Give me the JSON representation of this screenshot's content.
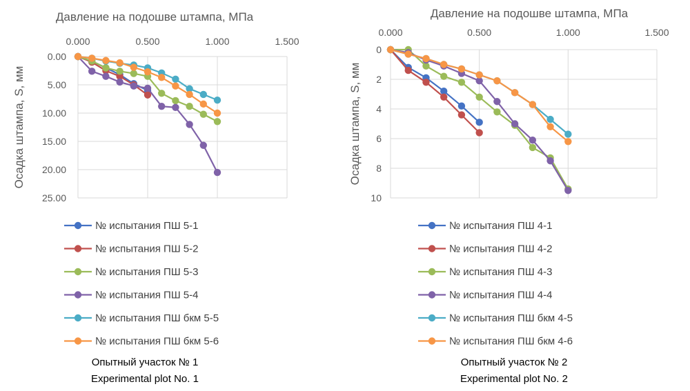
{
  "colors": [
    "#4472c4",
    "#c0504d",
    "#9bbb59",
    "#7f62a8",
    "#4bacc6",
    "#f79646"
  ],
  "chart_data": [
    {
      "type": "line",
      "title": "Давление на подошве штампа, МПа",
      "xlabel": "Давление на подошве штампа, МПа",
      "ylabel": "Осадка штампа, S, мм",
      "x_ticks": [
        "0.000",
        "0.500",
        "1.000",
        "1.500"
      ],
      "y_ticks": [
        "0.00",
        "5.00",
        "10.00",
        "15.00",
        "20.00",
        "25.00"
      ],
      "xlim": [
        0,
        1.5
      ],
      "ylim": [
        0,
        25
      ],
      "y_reversed": true,
      "x_axis_position": "top",
      "grid": true,
      "legend_position": "bottom",
      "series": [
        {
          "name": "№ испытания ПШ 5-1",
          "x": [
            0,
            0.1,
            0.2,
            0.3,
            0.4,
            0.5
          ],
          "y": [
            0,
            0.8,
            2.0,
            3.2,
            4.8,
            6.0
          ]
        },
        {
          "name": "№ испытания ПШ 5-2",
          "x": [
            0,
            0.1,
            0.2,
            0.3,
            0.4,
            0.5
          ],
          "y": [
            0,
            1.0,
            2.5,
            3.5,
            5.0,
            6.8
          ]
        },
        {
          "name": "№ испытания ПШ 5-3",
          "x": [
            0,
            0.1,
            0.2,
            0.3,
            0.4,
            0.5,
            0.6,
            0.7,
            0.8,
            0.9,
            1.0
          ],
          "y": [
            0,
            0.8,
            2.0,
            2.6,
            3.0,
            3.5,
            6.5,
            7.8,
            8.8,
            10.2,
            11.5
          ]
        },
        {
          "name": "№ испытания ПШ 5-4",
          "x": [
            0,
            0.1,
            0.2,
            0.3,
            0.4,
            0.5,
            0.6,
            0.7,
            0.8,
            0.9,
            1.0
          ],
          "y": [
            0,
            2.6,
            3.5,
            4.5,
            5.2,
            5.6,
            8.8,
            9.0,
            12.0,
            15.7,
            20.5
          ]
        },
        {
          "name": "№ испытания ПШ бкм 5-5",
          "x": [
            0,
            0.1,
            0.2,
            0.3,
            0.4,
            0.5,
            0.6,
            0.7,
            0.8,
            0.9,
            1.0
          ],
          "y": [
            0,
            0.3,
            0.8,
            1.2,
            1.5,
            2.0,
            2.9,
            4.0,
            5.7,
            6.7,
            7.7
          ]
        },
        {
          "name": "№ испытания ПШ бкм 5-6",
          "x": [
            0,
            0.1,
            0.2,
            0.3,
            0.4,
            0.5,
            0.6,
            0.7,
            0.8,
            0.9,
            1.0
          ],
          "y": [
            0,
            0.3,
            0.7,
            1.1,
            1.9,
            2.7,
            3.7,
            5.2,
            6.7,
            8.4,
            10.0
          ]
        }
      ]
    },
    {
      "type": "line",
      "title": "Давление на подошве штампа, МПа",
      "xlabel": "Давление на подошве штампа, МПа",
      "ylabel": "Осадка штампа, S, мм",
      "x_ticks": [
        "0.000",
        "0.500",
        "1.000",
        "1.500"
      ],
      "y_ticks": [
        "0",
        "2",
        "4",
        "6",
        "8",
        "10"
      ],
      "xlim": [
        0,
        1.5
      ],
      "ylim": [
        0,
        10
      ],
      "y_reversed": true,
      "x_axis_position": "top",
      "grid": true,
      "legend_position": "bottom",
      "series": [
        {
          "name": "№ испытания ПШ 4-1",
          "x": [
            0,
            0.1,
            0.2,
            0.3,
            0.4,
            0.5
          ],
          "y": [
            0,
            1.2,
            1.9,
            2.8,
            3.8,
            4.9
          ]
        },
        {
          "name": "№ испытания ПШ 4-2",
          "x": [
            0,
            0.1,
            0.2,
            0.3,
            0.4,
            0.5
          ],
          "y": [
            0,
            1.4,
            2.2,
            3.2,
            4.4,
            5.6
          ]
        },
        {
          "name": "№ испытания ПШ 4-3",
          "x": [
            0,
            0.1,
            0.2,
            0.3,
            0.4,
            0.5,
            0.6,
            0.7,
            0.8,
            0.9,
            1.0
          ],
          "y": [
            0,
            0.0,
            1.1,
            1.8,
            2.2,
            3.2,
            4.2,
            5.1,
            6.6,
            7.3,
            9.4
          ]
        },
        {
          "name": "№ испытания ПШ 4-4",
          "x": [
            0,
            0.1,
            0.2,
            0.3,
            0.4,
            0.5,
            0.6,
            0.7,
            0.8,
            0.9,
            1.0
          ],
          "y": [
            0,
            0.2,
            0.7,
            1.1,
            1.6,
            2.1,
            3.5,
            5.0,
            6.1,
            7.5,
            9.5
          ]
        },
        {
          "name": "№ испытания ПШ бкм 4-5",
          "x": [
            0,
            0.1,
            0.2,
            0.3,
            0.4,
            0.5,
            0.6,
            0.7,
            0.8,
            0.9,
            1.0
          ],
          "y": [
            0,
            0.3,
            0.6,
            1.0,
            1.3,
            1.7,
            2.1,
            2.9,
            3.7,
            4.7,
            5.7
          ]
        },
        {
          "name": "№ испытания ПШ бкм 4-6",
          "x": [
            0,
            0.1,
            0.2,
            0.3,
            0.4,
            0.5,
            0.6,
            0.7,
            0.8,
            0.9,
            1.0
          ],
          "y": [
            0,
            0.3,
            0.6,
            1.0,
            1.3,
            1.7,
            2.1,
            2.9,
            3.7,
            5.2,
            6.2
          ]
        }
      ]
    }
  ],
  "captions": [
    {
      "line1": "Опытный участок № 1",
      "line2": "Experimental plot  No. 1"
    },
    {
      "line1": "Опытный участок № 2",
      "line2": "Experimental plot No. 2"
    }
  ]
}
